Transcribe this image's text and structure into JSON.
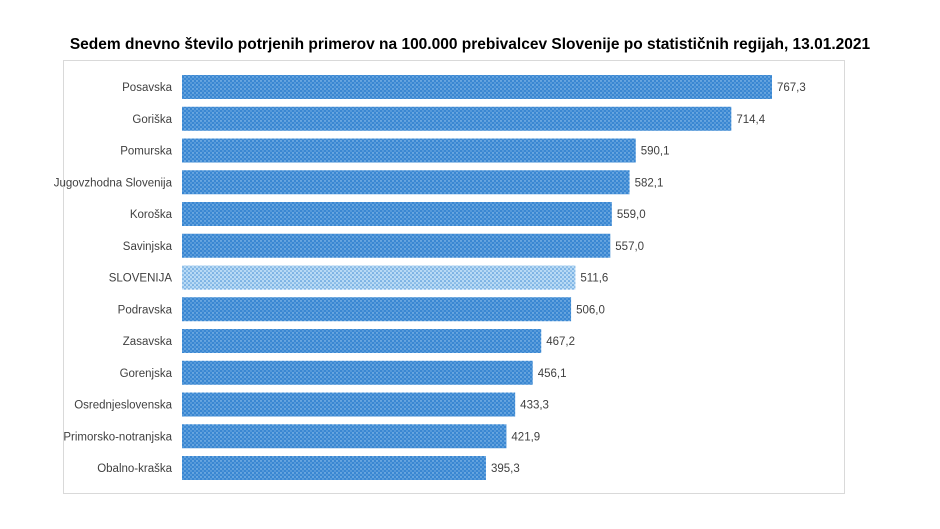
{
  "chart_data": {
    "type": "bar",
    "orientation": "horizontal",
    "title": "Sedem dnevno število potrjenih primerov na 100.000 prebivalcev Slovenije po statističnih regijah, 13.01.2021",
    "categories": [
      "Posavska",
      "Goriška",
      "Pomurska",
      "Jugovzhodna Slovenija",
      "Koroška",
      "Savinjska",
      "SLOVENIJA",
      "Podravska",
      "Zasavska",
      "Gorenjska",
      "Osrednjeslovenska",
      "Primorsko-notranjska",
      "Obalno-kraška"
    ],
    "values": [
      767.3,
      714.4,
      590.1,
      582.1,
      559.0,
      557.0,
      511.6,
      506.0,
      467.2,
      456.1,
      433.3,
      421.9,
      395.3
    ],
    "labels": [
      "767,3",
      "714,4",
      "590,1",
      "582,1",
      "559,0",
      "557,0",
      "511,6",
      "506,0",
      "467,2",
      "456,1",
      "433,3",
      "421,9",
      "395,3"
    ],
    "highlight": "SLOVENIJA",
    "colors": {
      "bar": "#3a87d2",
      "bar_dots": "#9cc8ef",
      "highlight_bar": "#9fcbf0",
      "highlight_dots": "#3a87d2"
    },
    "xlim": [
      0,
      767.3
    ],
    "grid": false,
    "legend": "none"
  }
}
